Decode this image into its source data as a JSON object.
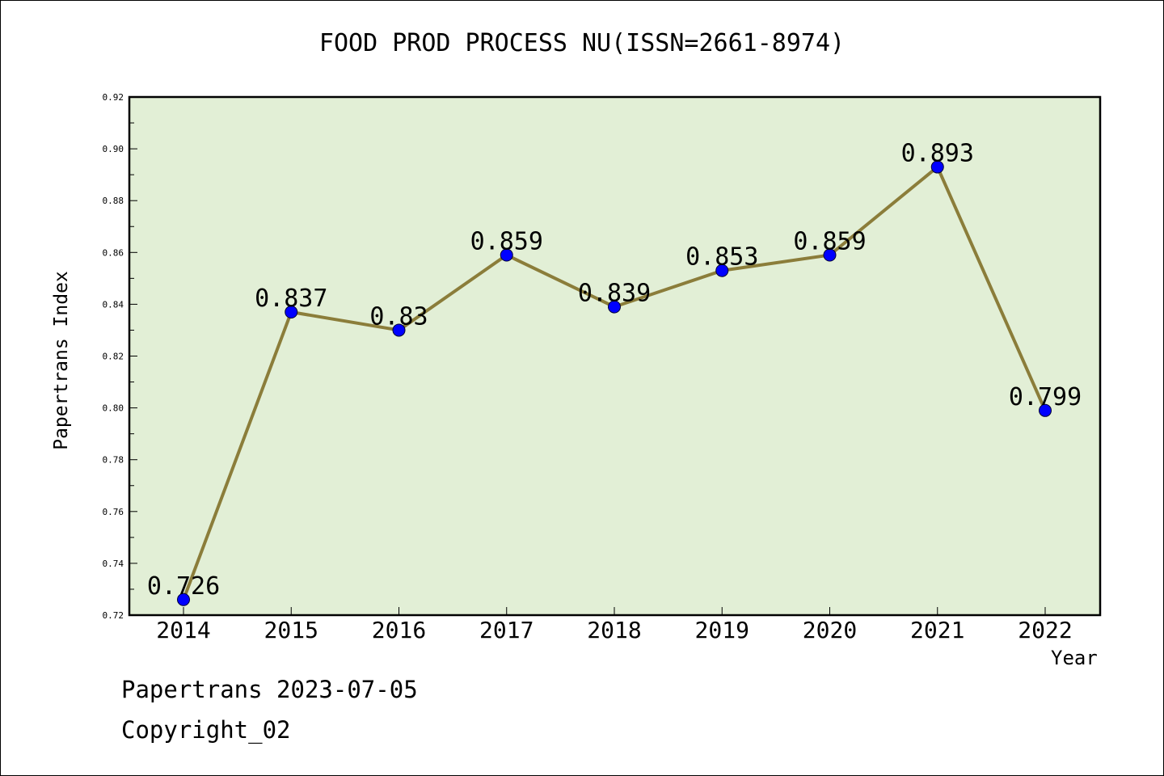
{
  "chart_data": {
    "type": "line",
    "title": "FOOD PROD PROCESS NU(ISSN=2661-8974)",
    "xlabel": "Year",
    "ylabel": "Papertrans Index",
    "categories": [
      "2014",
      "2015",
      "2016",
      "2017",
      "2018",
      "2019",
      "2020",
      "2021",
      "2022"
    ],
    "values": [
      0.726,
      0.837,
      0.83,
      0.859,
      0.839,
      0.853,
      0.859,
      0.893,
      0.799
    ],
    "data_labels": [
      "0.726",
      "0.837",
      "0.83",
      "0.859",
      "0.839",
      "0.853",
      "0.859",
      "0.893",
      "0.799"
    ],
    "ylim": [
      0.72,
      0.92
    ],
    "yticks": [
      "0.72",
      "0.74",
      "0.76",
      "0.78",
      "0.80",
      "0.82",
      "0.84",
      "0.86",
      "0.88",
      "0.90",
      "0.92"
    ],
    "plot_background": "#e2efd6",
    "line_color": "#8b7d3a",
    "marker_color": "#0000ff",
    "grid": false,
    "legend": "none"
  },
  "footer": {
    "line1": "Papertrans 2023-07-05",
    "line2": "Copyright_02"
  }
}
